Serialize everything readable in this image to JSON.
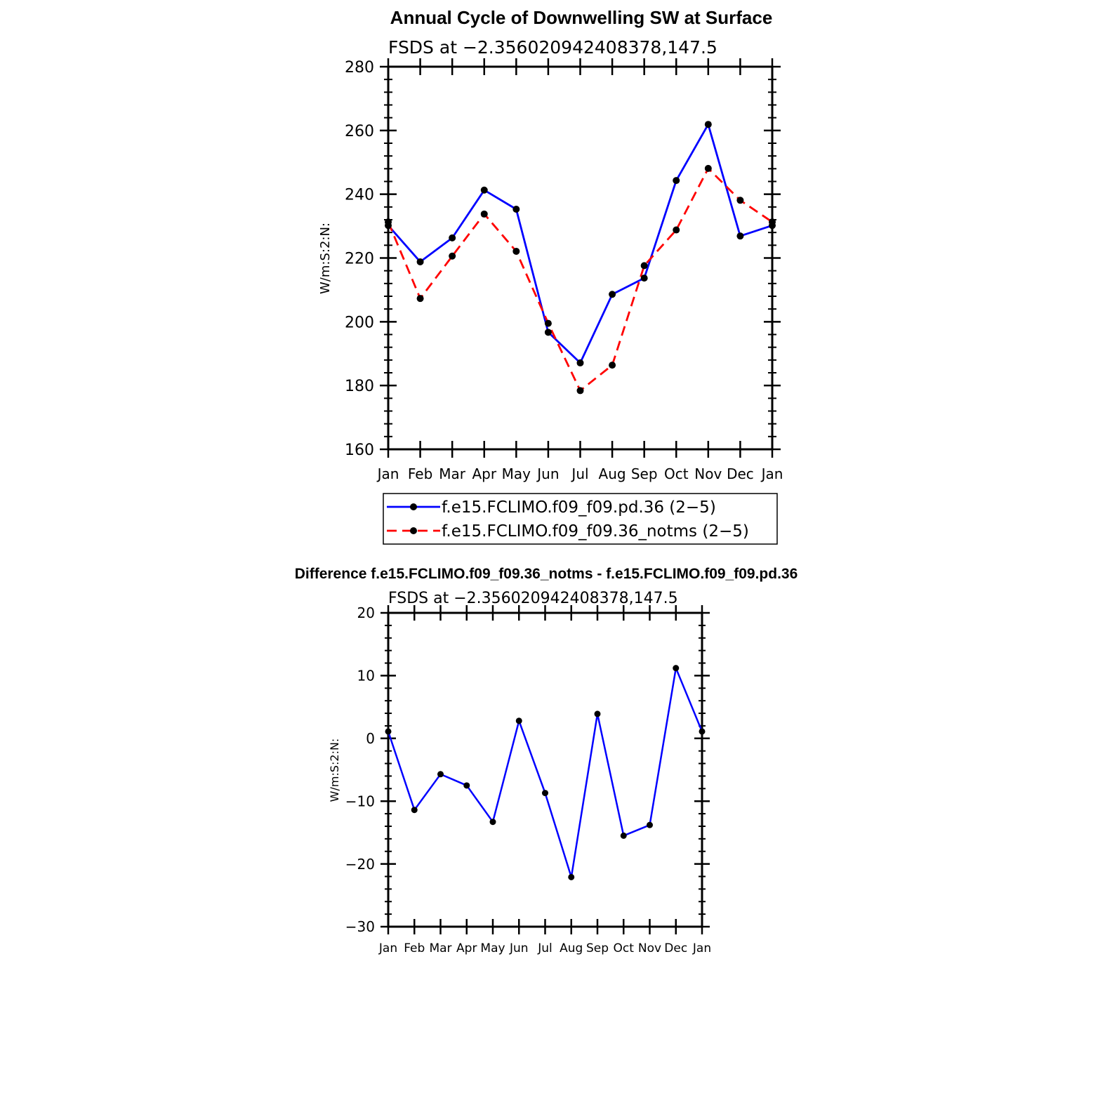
{
  "chart_data": [
    {
      "type": "line",
      "title": "Annual Cycle of Downwelling SW at Surface",
      "subtitle": "FSDS at −2.356020942408378,147.5",
      "xlabel": "",
      "ylabel": "W/m:S:2:N:",
      "categories": [
        "Jan",
        "Feb",
        "Mar",
        "Apr",
        "May",
        "Jun",
        "Jul",
        "Aug",
        "Sep",
        "Oct",
        "Nov",
        "Dec",
        "Jan"
      ],
      "ylim": [
        160,
        280
      ],
      "yticks": [
        "160",
        "180",
        "200",
        "220",
        "240",
        "260",
        "280"
      ],
      "grid": false,
      "legend_position": "bottom",
      "series": [
        {
          "name": "f.e15.FCLIMO.f09_f09.pd.36 (2−5)",
          "color": "#0000ff",
          "dash": "solid",
          "values": [
            230.2,
            218.8,
            226.3,
            241.3,
            235.3,
            196.7,
            187.1,
            208.6,
            213.7,
            244.3,
            261.9,
            226.9,
            230.2
          ]
        },
        {
          "name": "f.e15.FCLIMO.f09_f09.36_notms (2−5)",
          "color": "#ff0000",
          "dash": "dashed",
          "values": [
            231.3,
            207.3,
            220.6,
            233.8,
            222.1,
            199.5,
            178.4,
            186.4,
            217.6,
            228.8,
            248.1,
            238.1,
            231.3
          ]
        }
      ]
    },
    {
      "type": "line",
      "title": "Difference f.e15.FCLIMO.f09_f09.36_notms - f.e15.FCLIMO.f09_f09.pd.36",
      "subtitle": "FSDS at −2.356020942408378,147.5",
      "xlabel": "",
      "ylabel": "W/m:S:2:N:",
      "categories": [
        "Jan",
        "Feb",
        "Mar",
        "Apr",
        "May",
        "Jun",
        "Jul",
        "Aug",
        "Sep",
        "Oct",
        "Nov",
        "Dec",
        "Jan"
      ],
      "ylim": [
        -30,
        20
      ],
      "yticks": [
        "−30",
        "−20",
        "−10",
        "0",
        "10",
        "20"
      ],
      "grid": false,
      "series": [
        {
          "color": "#0000ff",
          "dash": "solid",
          "values": [
            1.1,
            -11.4,
            -5.7,
            -7.5,
            -13.3,
            2.8,
            -8.7,
            -22.1,
            3.9,
            -15.5,
            -13.8,
            11.2,
            1.1
          ]
        }
      ]
    }
  ]
}
